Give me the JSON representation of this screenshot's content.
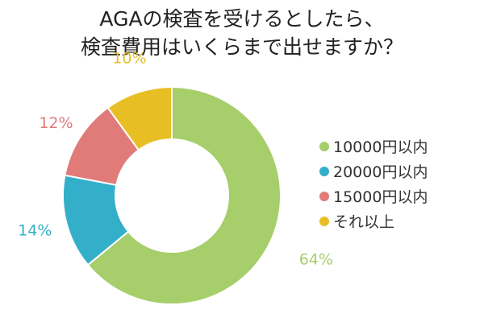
{
  "chart_data": {
    "type": "pie",
    "donut": true,
    "title_lines": [
      "AGAの検査を受けるとしたら、",
      "検査費用はいくらまで出せますか？"
    ],
    "slices": [
      {
        "label": "10000円以内",
        "value": 64,
        "display": "64%",
        "color": "#a6ce6b"
      },
      {
        "label": "20000円以内",
        "value": 14,
        "display": "14%",
        "color": "#34afc9"
      },
      {
        "label": "15000円以内",
        "value": 12,
        "display": "12%",
        "color": "#e07b7a"
      },
      {
        "label": "それ以上",
        "value": 10,
        "display": "10%",
        "color": "#e7bf25"
      }
    ],
    "legend_position": "right"
  }
}
